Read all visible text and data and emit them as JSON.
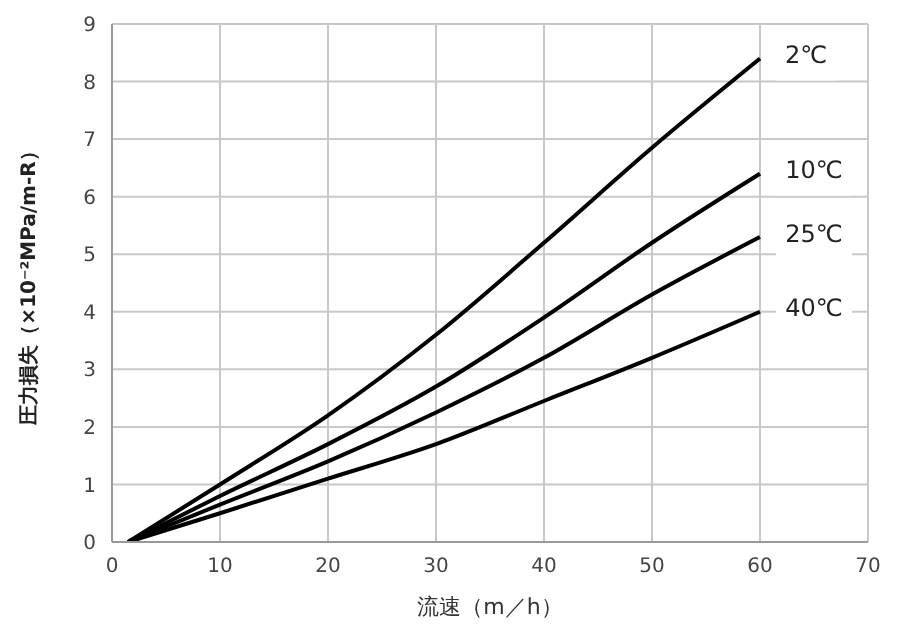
{
  "chart_data": {
    "type": "line",
    "xlabel": "流速（m／h）",
    "ylabel": "圧力損失（×10⁻²MPa/m-R）",
    "xlim": [
      0,
      70
    ],
    "xticks": [
      0,
      10,
      20,
      30,
      40,
      50,
      60,
      70
    ],
    "ylim": [
      0,
      9
    ],
    "yticks": [
      0,
      1,
      2,
      3,
      4,
      5,
      6,
      7,
      8,
      9
    ],
    "grid": true,
    "legend": false,
    "marker": "none",
    "line_style": "solid",
    "series": [
      {
        "name": "2℃",
        "color": "#000000",
        "x": [
          1.5,
          10,
          20,
          30,
          40,
          50,
          60
        ],
        "values": [
          0,
          1.0,
          2.2,
          3.6,
          5.2,
          6.85,
          8.4
        ]
      },
      {
        "name": "10℃",
        "color": "#000000",
        "x": [
          1.5,
          10,
          20,
          30,
          40,
          50,
          60
        ],
        "values": [
          0,
          0.8,
          1.7,
          2.7,
          3.9,
          5.2,
          6.4
        ]
      },
      {
        "name": "25℃",
        "color": "#000000",
        "x": [
          1.5,
          10,
          20,
          30,
          40,
          50,
          60
        ],
        "values": [
          0,
          0.65,
          1.4,
          2.25,
          3.2,
          4.3,
          5.3
        ]
      },
      {
        "name": "40℃",
        "color": "#000000",
        "x": [
          1.5,
          10,
          20,
          30,
          40,
          50,
          60
        ],
        "values": [
          0,
          0.5,
          1.1,
          1.7,
          2.45,
          3.2,
          4.0
        ]
      }
    ]
  }
}
